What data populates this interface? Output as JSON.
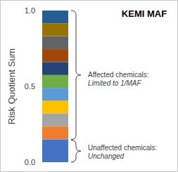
{
  "chart_data": {
    "type": "bar",
    "title": "KEMI MAF",
    "y_label": "Risk Quotient Sum",
    "stacked": true,
    "tick_labels": "y",
    "categories": [
      null
    ],
    "series": [
      {
        "color": "#4472c4",
        "values": [
          0.15
        ]
      },
      {
        "color": "#ed7d31",
        "values": [
          0.085
        ]
      },
      {
        "color": "#a5a5a5",
        "values": [
          0.085
        ]
      },
      {
        "color": "#ffc000",
        "values": [
          0.085
        ]
      },
      {
        "color": "#5b9bd5",
        "values": [
          0.085
        ]
      },
      {
        "color": "#70ad47",
        "values": [
          0.085
        ]
      },
      {
        "color": "#264478",
        "values": [
          0.085
        ]
      },
      {
        "color": "#9e480e",
        "values": [
          0.085
        ]
      },
      {
        "color": "#636363",
        "values": [
          0.085
        ]
      },
      {
        "color": "#997300",
        "values": [
          0.085
        ]
      },
      {
        "color": "#255e91",
        "values": [
          0.085
        ]
      }
    ],
    "ylim": [
      0,
      1
    ],
    "yticks": [
      {
        "value": 0,
        "label": "0.0"
      },
      {
        "value": 0.5,
        "label": "0.5"
      },
      {
        "value": 1,
        "label": "1.0"
      }
    ],
    "annotations": [
      {
        "text": "Affected chemicals:",
        "note": "Limited to 1/MAF"
      },
      {
        "text": "Unaffected chemicals:",
        "note": "Unchanged"
      }
    ]
  }
}
